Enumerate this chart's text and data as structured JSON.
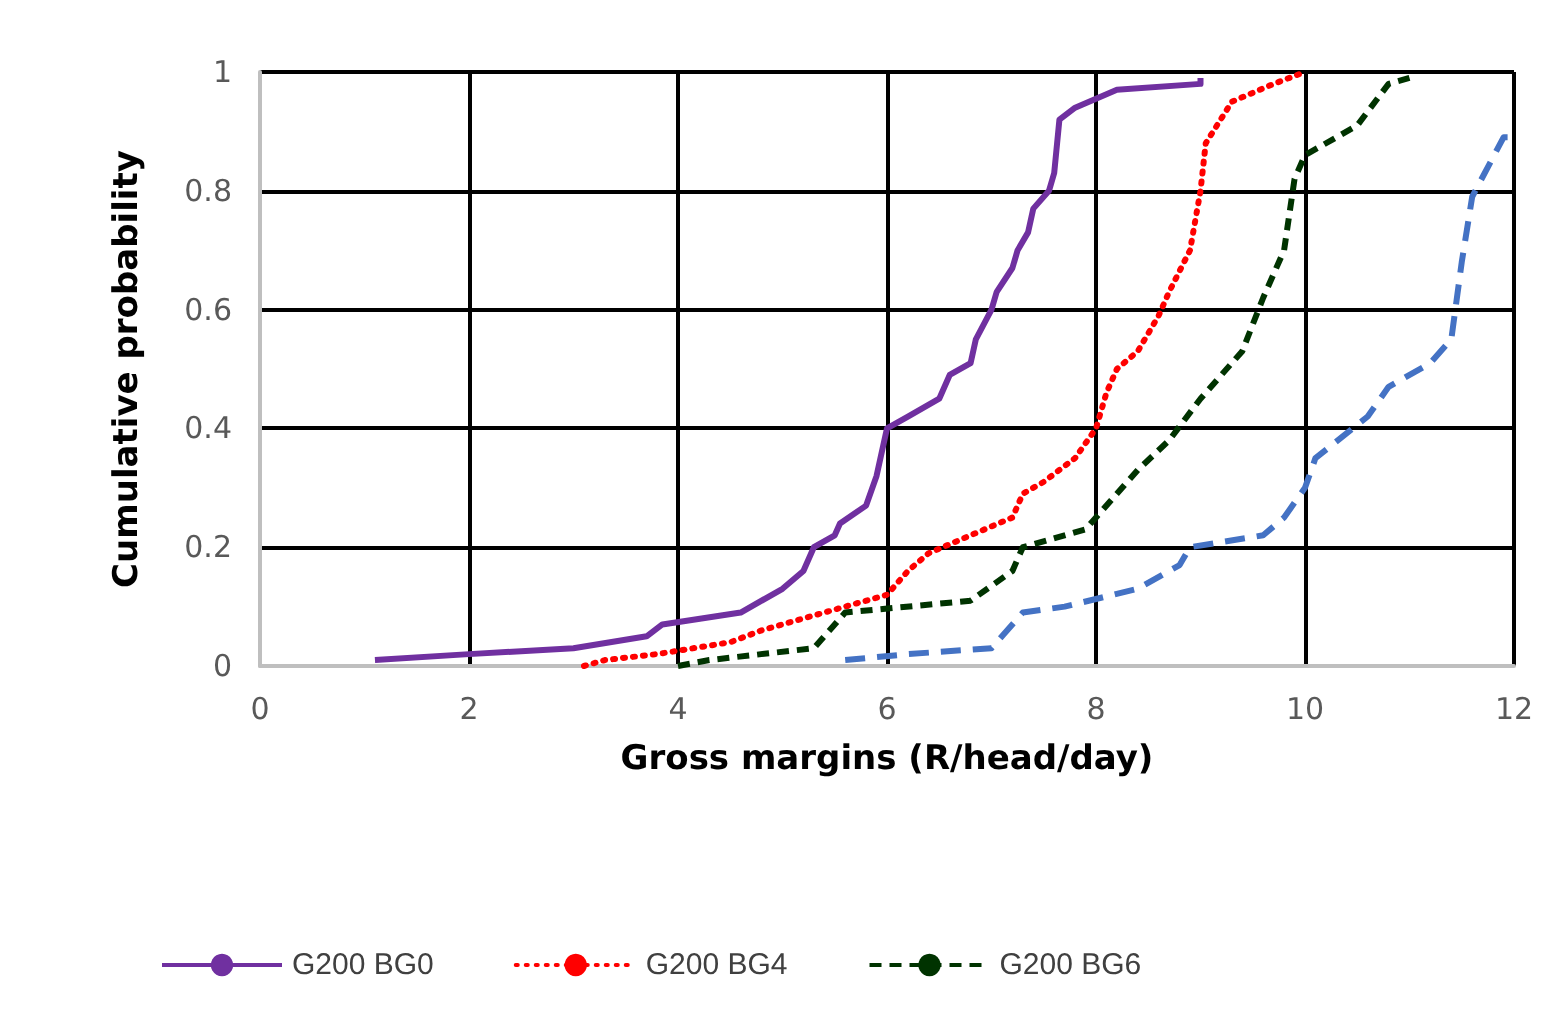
{
  "chart_data": {
    "type": "line",
    "xlabel": "Gross margins (R/head/day)",
    "ylabel": "Cumulative probability",
    "xlim": [
      0,
      12
    ],
    "xticks": [
      0,
      2,
      4,
      6,
      8,
      10,
      12
    ],
    "ylim": [
      0,
      1
    ],
    "yticks": [
      0,
      0.2,
      0.4,
      0.6,
      0.8,
      1
    ],
    "grid": true,
    "legend": "bottom",
    "marker": "none",
    "series": [
      {
        "name": "G200 BG0",
        "color": "#7030a0",
        "line_style": "solid",
        "x": [
          1.1,
          2,
          3,
          3.7,
          3.85,
          4.6,
          5.0,
          5.2,
          5.3,
          5.5,
          5.55,
          5.8,
          5.9,
          6,
          6.2,
          6.5,
          6.6,
          6.8,
          6.85,
          7.0,
          7.05,
          7.2,
          7.25,
          7.35,
          7.4,
          7.55,
          7.6,
          7.65,
          7.8,
          8.2,
          9.0,
          9.0
        ],
        "values": [
          0.01,
          0.02,
          0.03,
          0.05,
          0.07,
          0.09,
          0.13,
          0.16,
          0.2,
          0.22,
          0.24,
          0.27,
          0.32,
          0.4,
          0.42,
          0.45,
          0.49,
          0.51,
          0.55,
          0.6,
          0.63,
          0.67,
          0.7,
          0.73,
          0.77,
          0.8,
          0.83,
          0.92,
          0.94,
          0.97,
          0.98,
          0.99
        ]
      },
      {
        "name": "G200 BG4",
        "color": "#ff0000",
        "line_style": "dotted",
        "x": [
          3.1,
          3.3,
          3.8,
          4.5,
          4.8,
          5.2,
          6,
          6.2,
          6.4,
          6.8,
          7.2,
          7.3,
          7.5,
          7.8,
          8,
          8.1,
          8.2,
          8.4,
          8.6,
          8.7,
          8.9,
          9.0,
          9.05,
          9.3,
          9.7,
          10
        ],
        "values": [
          0,
          0.01,
          0.02,
          0.04,
          0.06,
          0.08,
          0.12,
          0.16,
          0.19,
          0.22,
          0.25,
          0.29,
          0.31,
          0.35,
          0.4,
          0.46,
          0.5,
          0.53,
          0.59,
          0.63,
          0.7,
          0.8,
          0.88,
          0.95,
          0.98,
          1.0
        ]
      },
      {
        "name": "G200 BG6",
        "color": "#003300",
        "line_style": "dashed",
        "x": [
          4,
          4.3,
          5.3,
          5.6,
          6.8,
          7.2,
          7.3,
          7.9,
          8.0,
          8.4,
          8.7,
          9.0,
          9.2,
          9.4,
          9.6,
          9.8,
          9.9,
          10,
          10.5,
          10.8,
          11
        ],
        "values": [
          0,
          0.01,
          0.03,
          0.09,
          0.11,
          0.16,
          0.2,
          0.23,
          0.25,
          0.33,
          0.38,
          0.45,
          0.49,
          0.53,
          0.62,
          0.7,
          0.82,
          0.86,
          0.91,
          0.98,
          0.99
        ]
      },
      {
        "color": "#4472c4",
        "line_style": "dashed",
        "x": [
          5.6,
          6.2,
          7,
          7.3,
          7.7,
          8.4,
          8.8,
          8.9,
          9.6,
          9.8,
          10,
          10.1,
          10.6,
          10.8,
          11.2,
          11.4,
          11.5,
          11.6,
          11.9,
          12
        ],
        "values": [
          0.01,
          0.02,
          0.03,
          0.09,
          0.1,
          0.13,
          0.17,
          0.2,
          0.22,
          0.25,
          0.3,
          0.35,
          0.42,
          0.47,
          0.51,
          0.55,
          0.68,
          0.79,
          0.89,
          0.89
        ]
      }
    ]
  }
}
